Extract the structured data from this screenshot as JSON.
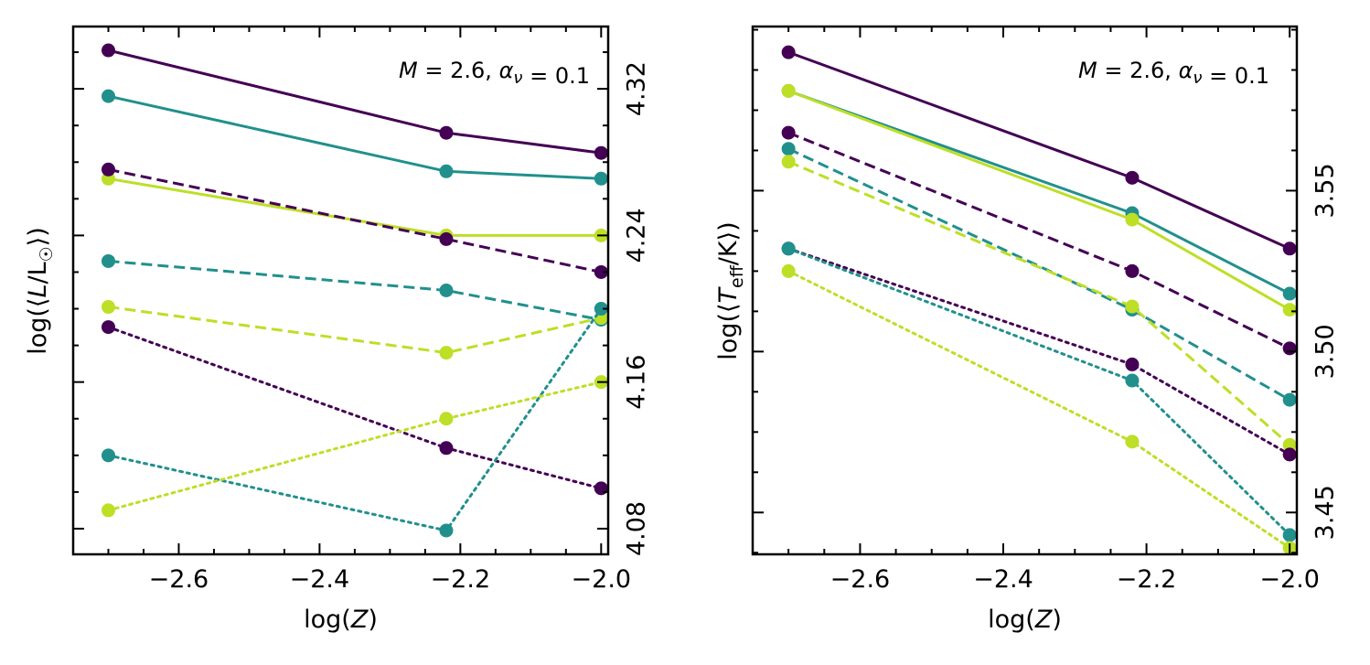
{
  "chart_data": [
    {
      "type": "line",
      "annotation": "M = 2.6, α_ν = 0.1",
      "xlabel": "log(Z)",
      "ylabel": "log(⟨L/L☉⟩)",
      "y_ticks_side": "right",
      "xlim": [
        -2.75,
        -1.99
      ],
      "ylim": [
        4.066,
        4.354
      ],
      "x_ticks": [
        -2.6,
        -2.4,
        -2.2,
        -2.0
      ],
      "x_tick_labels": [
        "−2.6",
        "−2.4",
        "−2.2",
        "−2.0"
      ],
      "y_ticks": [
        4.08,
        4.16,
        4.24,
        4.32
      ],
      "y_tick_labels": [
        "4.08",
        "4.16",
        "4.24",
        "4.32"
      ],
      "x": [
        -2.7,
        -2.22,
        -2.0
      ],
      "series": [
        {
          "color": "#440154",
          "linestyle": "solid",
          "values": [
            4.341,
            4.296,
            4.285
          ]
        },
        {
          "color": "#21908d",
          "linestyle": "solid",
          "values": [
            4.316,
            4.275,
            4.271
          ]
        },
        {
          "color": "#bddf26",
          "linestyle": "solid",
          "values": [
            4.271,
            4.24,
            4.24
          ]
        },
        {
          "color": "#440154",
          "linestyle": "dashed",
          "values": [
            4.276,
            4.238,
            4.22
          ]
        },
        {
          "color": "#21908d",
          "linestyle": "dashed",
          "values": [
            4.226,
            4.21,
            4.194
          ]
        },
        {
          "color": "#bddf26",
          "linestyle": "dashed",
          "values": [
            4.201,
            4.176,
            4.195
          ]
        },
        {
          "color": "#440154",
          "linestyle": "dotted",
          "values": [
            4.19,
            4.124,
            4.102
          ]
        },
        {
          "color": "#21908d",
          "linestyle": "dotted",
          "values": [
            4.12,
            4.079,
            4.2
          ]
        },
        {
          "color": "#bddf26",
          "linestyle": "dotted",
          "values": [
            4.09,
            4.14,
            4.16
          ]
        }
      ]
    },
    {
      "type": "line",
      "annotation": "M = 2.6, α_ν = 0.1",
      "xlabel": "log(Z)",
      "ylabel": "log(⟨T_eff/K⟩)",
      "y_ticks_side": "right",
      "xlim": [
        -2.75,
        -1.99
      ],
      "ylim": [
        3.437,
        3.601
      ],
      "x_ticks": [
        -2.6,
        -2.4,
        -2.2,
        -2.0
      ],
      "x_tick_labels": [
        "−2.6",
        "−2.4",
        "−2.2",
        "−2.0"
      ],
      "y_ticks": [
        3.45,
        3.5,
        3.55
      ],
      "y_tick_labels": [
        "3.45",
        "3.50",
        "3.55"
      ],
      "x": [
        -2.7,
        -2.22,
        -2.0
      ],
      "series": [
        {
          "color": "#440154",
          "linestyle": "solid",
          "values": [
            3.593,
            3.554,
            3.532
          ]
        },
        {
          "color": "#21908d",
          "linestyle": "solid",
          "values": [
            3.581,
            3.543,
            3.518
          ]
        },
        {
          "color": "#bddf26",
          "linestyle": "solid",
          "values": [
            3.581,
            3.541,
            3.513
          ]
        },
        {
          "color": "#440154",
          "linestyle": "dashed",
          "values": [
            3.568,
            3.525,
            3.501
          ]
        },
        {
          "color": "#21908d",
          "linestyle": "dashed",
          "values": [
            3.563,
            3.513,
            3.485
          ]
        },
        {
          "color": "#bddf26",
          "linestyle": "dashed",
          "values": [
            3.559,
            3.514,
            3.471
          ]
        },
        {
          "color": "#440154",
          "linestyle": "dotted",
          "values": [
            3.532,
            3.496,
            3.468
          ]
        },
        {
          "color": "#21908d",
          "linestyle": "dotted",
          "values": [
            3.532,
            3.491,
            3.443
          ]
        },
        {
          "color": "#bddf26",
          "linestyle": "dotted",
          "values": [
            3.525,
            3.472,
            3.439
          ]
        }
      ]
    }
  ]
}
